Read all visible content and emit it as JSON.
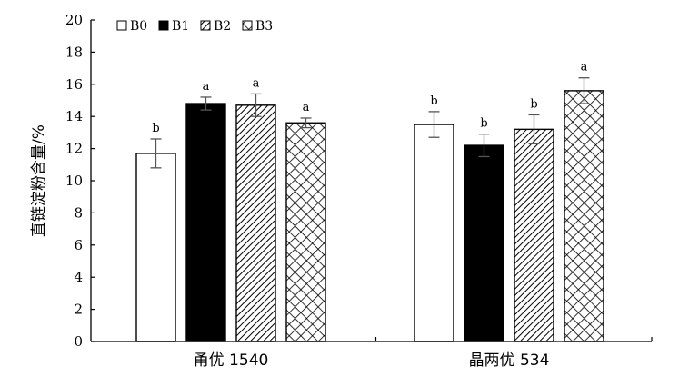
{
  "chart_data": {
    "type": "bar",
    "ylabel": "直链淀粉含量/%",
    "ylim": [
      0,
      20
    ],
    "yticks": [
      "0",
      "2",
      "4",
      "6",
      "8",
      "10",
      "12",
      "14",
      "16",
      "18",
      "20"
    ],
    "categories": [
      "甬优 1540",
      "晶两优 534"
    ],
    "legend_position": "top-left",
    "series": [
      {
        "name": "B0",
        "pattern": "white",
        "values": [
          11.7,
          13.5
        ],
        "errors": [
          0.9,
          0.8
        ],
        "labels": [
          "b",
          "b"
        ]
      },
      {
        "name": "B1",
        "pattern": "black",
        "values": [
          14.8,
          12.2
        ],
        "errors": [
          0.4,
          0.7
        ],
        "labels": [
          "a",
          "b"
        ]
      },
      {
        "name": "B2",
        "pattern": "diagonal",
        "values": [
          14.7,
          13.2
        ],
        "errors": [
          0.7,
          0.9
        ],
        "labels": [
          "a",
          "b"
        ]
      },
      {
        "name": "B3",
        "pattern": "crosshatch",
        "values": [
          13.6,
          15.6
        ],
        "errors": [
          0.3,
          0.8
        ],
        "labels": [
          "a",
          "a"
        ]
      }
    ]
  }
}
